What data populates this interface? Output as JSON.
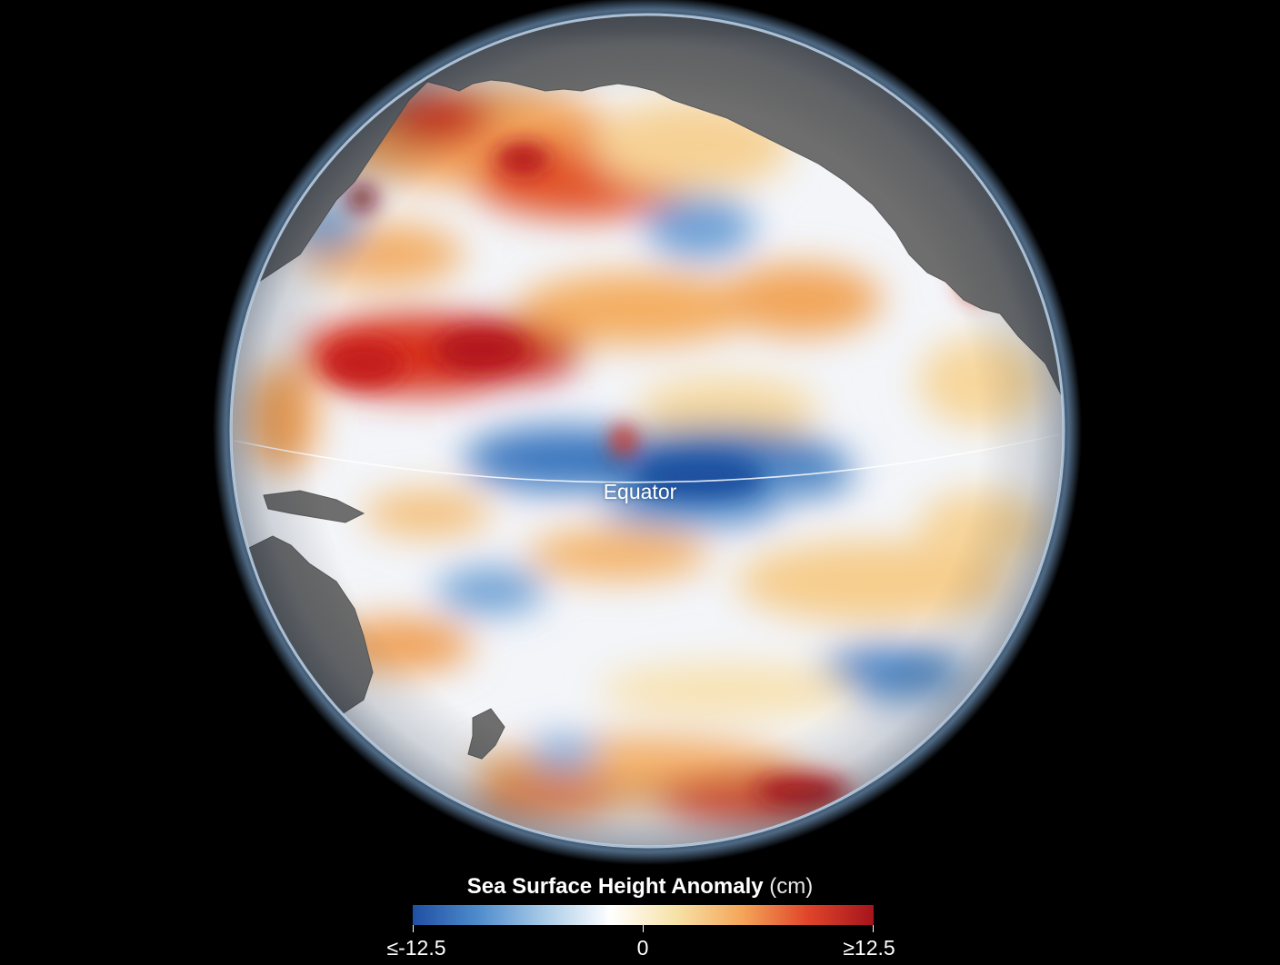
{
  "map": {
    "equator_label": "Equator"
  },
  "legend": {
    "title_bold": "Sea Surface Height Anomaly",
    "title_unit": "(cm)",
    "min_label": "≤-12.5",
    "mid_label": "0",
    "max_label": "≥12.5",
    "colors": [
      "#1f4fa3",
      "#4f8ccc",
      "#a9cbe8",
      "#ffffff",
      "#f6e2a8",
      "#f4a659",
      "#e0452a",
      "#a5141c"
    ]
  },
  "colors": {
    "background": "#000000",
    "land": "#6e6e6e",
    "ocean_neutral": "#f3f5f9",
    "positive_anomaly": "#d8331f",
    "negative_anomaly": "#2c6bb3"
  }
}
